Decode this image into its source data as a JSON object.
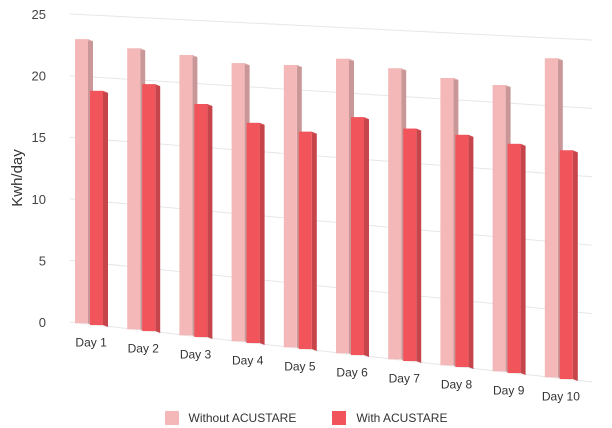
{
  "chart_data": {
    "type": "bar",
    "ylabel": "Kwh/day",
    "ylim": [
      0,
      25
    ],
    "yticks": [
      0,
      5,
      10,
      15,
      20,
      25
    ],
    "grid": true,
    "legend_position": "bottom",
    "categories": [
      "Day 1",
      "Day 2",
      "Day 3",
      "Day 4",
      "Day 5",
      "Day 6",
      "Day 7",
      "Day 8",
      "Day 9",
      "Day 10"
    ],
    "series": [
      {
        "name": "Without ACUSTARE",
        "color": "#f5b8b8",
        "values": [
          23.0,
          22.5,
          22.2,
          21.8,
          21.9,
          22.6,
          22.1,
          21.6,
          21.3,
          23.5
        ]
      },
      {
        "name": "With ACUSTARE",
        "color": "#f2545b",
        "values": [
          18.9,
          19.7,
          18.4,
          17.2,
          16.8,
          18.2,
          17.6,
          17.4,
          17.0,
          16.8
        ]
      }
    ]
  }
}
